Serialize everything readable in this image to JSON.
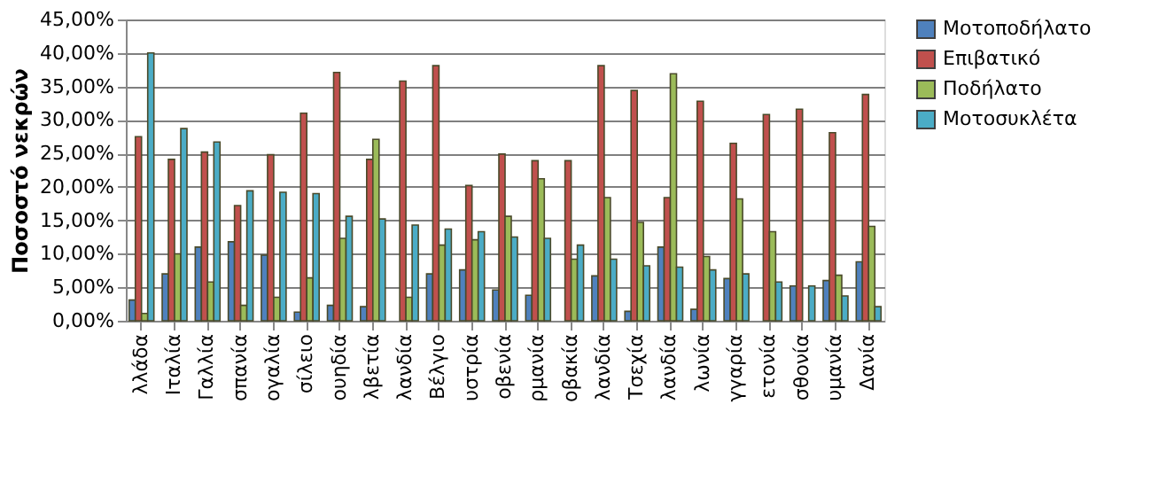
{
  "chart_data": {
    "type": "bar",
    "ylabel": "Ποσοστό νεκρών",
    "categories": [
      "λλάδα",
      "Ιταλία",
      "Γαλλία",
      "σπανία",
      "ογαλία",
      "σίλειο",
      "ουηδία",
      "λβετία",
      "λανδία",
      "Βέλγιο",
      "υστρία",
      "οβενία",
      "ρμανία",
      "οβακία",
      "λανδία",
      "Τσεχία",
      "λανδία",
      "λωνία",
      "γγαρία",
      "ετονία",
      "σθονία",
      "υμανία",
      "Δανία"
    ],
    "series": [
      {
        "name": "Μοτοποδήλατο",
        "color": "#4f81bd",
        "values": [
          3.1,
          7.0,
          11.0,
          11.8,
          9.8,
          1.3,
          2.3,
          2.1,
          null,
          7.0,
          7.6,
          4.6,
          3.8,
          null,
          6.7,
          1.4,
          11.0,
          1.7,
          6.3,
          null,
          5.2,
          6.0,
          8.8
        ]
      },
      {
        "name": "Επιβατικό",
        "color": "#c0504d",
        "values": [
          27.5,
          24.1,
          25.2,
          17.2,
          24.8,
          31.0,
          37.1,
          24.1,
          35.8,
          38.1,
          20.2,
          24.9,
          23.9,
          23.9,
          38.1,
          34.4,
          18.4,
          32.8,
          26.5,
          30.8,
          31.6,
          28.1,
          33.8
        ]
      },
      {
        "name": "Ποδήλατο",
        "color": "#9bbb59",
        "values": [
          1.1,
          10.0,
          5.8,
          2.3,
          3.5,
          6.4,
          12.3,
          27.1,
          3.5,
          11.3,
          12.1,
          15.6,
          21.2,
          9.2,
          18.4,
          14.7,
          36.9,
          9.6,
          18.2,
          13.3,
          null,
          6.8,
          14.1
        ]
      },
      {
        "name": "Μοτοσυκλέτα",
        "color": "#4bacc6",
        "values": [
          40.0,
          28.7,
          26.7,
          19.4,
          19.2,
          19.0,
          15.6,
          15.2,
          14.3,
          13.7,
          13.3,
          12.5,
          12.3,
          11.3,
          9.2,
          8.2,
          8.0,
          7.6,
          7.0,
          5.8,
          5.2,
          3.7,
          2.1
        ]
      }
    ],
    "ylim": [
      0,
      45
    ],
    "yticks": [
      {
        "value": 0,
        "label": "0,00%"
      },
      {
        "value": 5,
        "label": "5,00%"
      },
      {
        "value": 10,
        "label": "10,00%"
      },
      {
        "value": 15,
        "label": "15,00%"
      },
      {
        "value": 20,
        "label": "20,00%"
      },
      {
        "value": 25,
        "label": "25,00%"
      },
      {
        "value": 30,
        "label": "30,00%"
      },
      {
        "value": 35,
        "label": "35,00%"
      },
      {
        "value": 40,
        "label": "40,00%"
      },
      {
        "value": 45,
        "label": "45,00%"
      }
    ],
    "grid": "y",
    "legend": "right"
  }
}
